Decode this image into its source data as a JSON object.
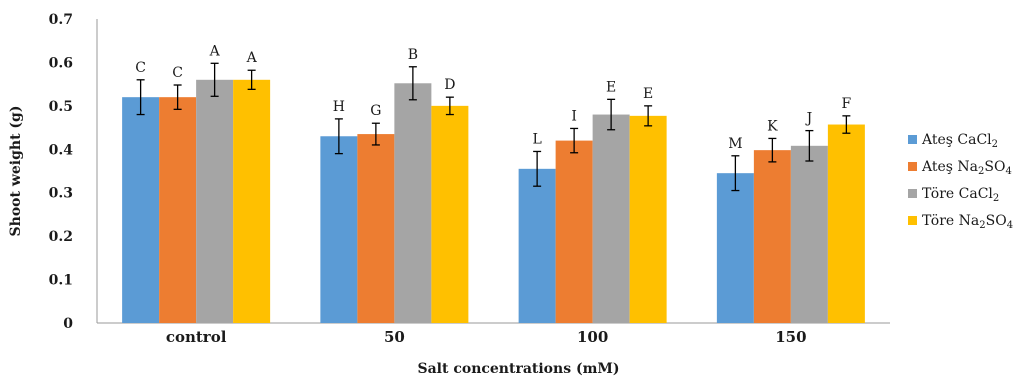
{
  "chart_data": {
    "type": "bar",
    "title": "",
    "xlabel": "Salt concentrations (mM)",
    "ylabel": "Shoot weight (g)",
    "ylim": [
      0,
      0.7
    ],
    "yticks": [
      "0",
      "0.1",
      "0.2",
      "0.3",
      "0.4",
      "0.5",
      "0.6",
      "0.7"
    ],
    "grid": false,
    "legend_position": "right",
    "categories": [
      "control",
      "50",
      "100",
      "150"
    ],
    "series": [
      {
        "name": "Ateş CaCl2",
        "name_html": "Ateş CaCl<tspan font-size='10' dy='3'>2</tspan>",
        "color": "#5b9bd5",
        "values": [
          0.52,
          0.43,
          0.355,
          0.345
        ],
        "errors": [
          0.04,
          0.04,
          0.04,
          0.04
        ],
        "labels": [
          "C",
          "H",
          "L",
          "M"
        ]
      },
      {
        "name": "Ateş Na2SO4",
        "name_html": "Ateş Na<tspan font-size='10' dy='3'>2</tspan><tspan dy='-3'>SO</tspan><tspan font-size='10' dy='3'>4</tspan>",
        "color": "#ed7d31",
        "values": [
          0.52,
          0.435,
          0.42,
          0.398
        ],
        "errors": [
          0.028,
          0.025,
          0.028,
          0.027
        ],
        "labels": [
          "C",
          "G",
          "I",
          "K"
        ]
      },
      {
        "name": "Töre CaCl2",
        "name_html": "Töre CaCl<tspan font-size='10' dy='3'>2</tspan>",
        "color": "#a5a5a5",
        "values": [
          0.56,
          0.552,
          0.48,
          0.408
        ],
        "errors": [
          0.038,
          0.038,
          0.035,
          0.035
        ],
        "labels": [
          "A",
          "B",
          "E",
          "J"
        ]
      },
      {
        "name": "Töre Na2SO4",
        "name_html": "Töre Na<tspan font-size='10' dy='3'>2</tspan><tspan dy='-3'>SO</tspan><tspan font-size='10' dy='3'>4</tspan>",
        "color": "#ffc000",
        "values": [
          0.56,
          0.5,
          0.477,
          0.457
        ],
        "errors": [
          0.022,
          0.02,
          0.023,
          0.02
        ],
        "labels": [
          "A",
          "D",
          "E",
          "F"
        ]
      }
    ]
  }
}
